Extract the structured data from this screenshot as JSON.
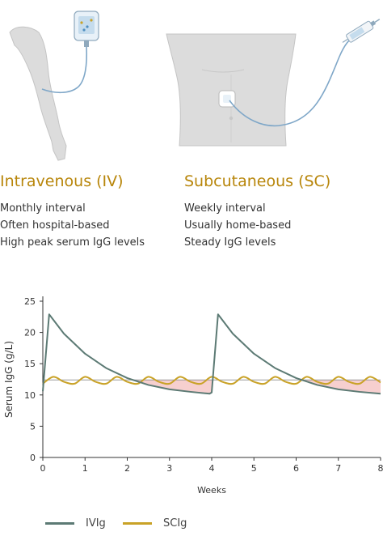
{
  "iv": {
    "title": "Intravenous (IV)",
    "facts": [
      "Monthly interval",
      "Often hospital-based",
      "High peak serum IgG levels"
    ]
  },
  "sc": {
    "title": "Subcutaneous (SC)",
    "facts": [
      "Weekly interval",
      "Usually home-based",
      "Steady IgG levels"
    ]
  },
  "colors": {
    "accent": "#b8860b",
    "ivig_line": "#5c7a74",
    "scig_line": "#c9a227",
    "shade": "#f4c7c7",
    "reference_line": "#999999",
    "illustration_body": "#dcdcdc",
    "tubing": "#7fa7c8"
  },
  "chart_data": {
    "type": "line",
    "xlabel": "Weeks",
    "ylabel": "Serum IgG (g/L)",
    "xlim": [
      0,
      8
    ],
    "ylim": [
      0,
      25
    ],
    "xticks": [
      0,
      1,
      2,
      3,
      4,
      5,
      6,
      7,
      8
    ],
    "yticks": [
      0,
      5,
      10,
      15,
      20,
      25
    ],
    "reference_level": 12.4,
    "shaded": "between reference level and IVIg curve where IVIg is below it",
    "series": [
      {
        "name": "IVIg",
        "color": "#5c7a74",
        "x": [
          0,
          0.15,
          0.5,
          1,
          1.5,
          2,
          2.5,
          3,
          3.5,
          3.95,
          4,
          4.15,
          4.5,
          5,
          5.5,
          6,
          6.5,
          7,
          7.5,
          8
        ],
        "y": [
          10.6,
          22.9,
          19.8,
          16.6,
          14.3,
          12.7,
          11.6,
          10.9,
          10.5,
          10.2,
          10.4,
          22.9,
          19.8,
          16.6,
          14.3,
          12.7,
          11.6,
          10.9,
          10.5,
          10.2
        ]
      },
      {
        "name": "SCIg",
        "color": "#c9a227",
        "x": [
          0,
          0.25,
          0.5,
          0.75,
          1,
          1.25,
          1.5,
          1.75,
          2,
          2.25,
          2.5,
          2.75,
          3,
          3.25,
          3.5,
          3.75,
          4,
          4.25,
          4.5,
          4.75,
          5,
          5.25,
          5.5,
          5.75,
          6,
          6.25,
          6.5,
          6.75,
          7,
          7.25,
          7.5,
          7.75,
          8
        ],
        "y": [
          11.8,
          12.9,
          12.1,
          11.8,
          12.9,
          12.1,
          11.8,
          12.9,
          12.1,
          11.8,
          12.9,
          12.1,
          11.8,
          12.9,
          12.1,
          11.8,
          12.9,
          12.1,
          11.8,
          12.9,
          12.1,
          11.8,
          12.9,
          12.1,
          11.8,
          12.9,
          12.1,
          11.8,
          12.9,
          12.1,
          11.8,
          12.9,
          12.0
        ]
      }
    ]
  },
  "legend": {
    "items": [
      {
        "label": "IVIg",
        "color": "#5c7a74"
      },
      {
        "label": "SCIg",
        "color": "#c9a227"
      }
    ]
  }
}
